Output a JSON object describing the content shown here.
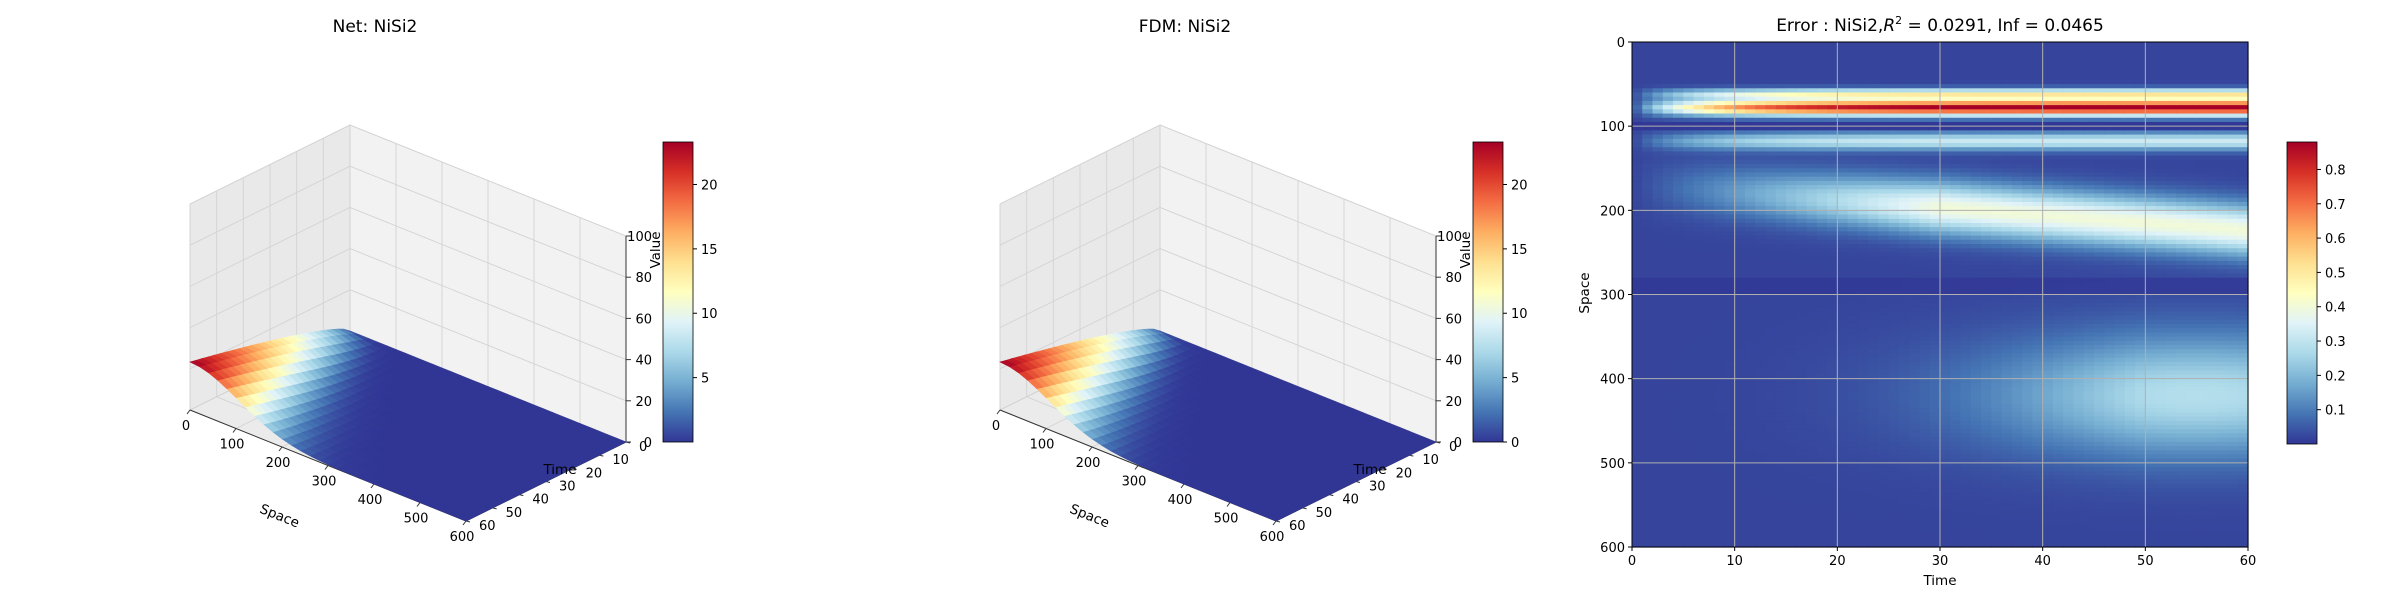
{
  "figure": {
    "background": "#ffffff"
  },
  "chart_data": [
    {
      "type": "surface3d",
      "title": "Net: NiSi2",
      "xlabel": "Space",
      "ylabel": "Time",
      "zlabel": "Value",
      "xlim": [
        0,
        600
      ],
      "ylim": [
        0,
        60
      ],
      "zlim": [
        0,
        100
      ],
      "xticks": [
        0,
        100,
        200,
        300,
        400,
        500,
        600
      ],
      "yticks": [
        0,
        10,
        20,
        30,
        40,
        50,
        60
      ],
      "zticks": [
        0,
        20,
        40,
        60,
        80,
        100
      ],
      "surface": {
        "peak_value": 23.3,
        "peak_space": 0,
        "peak_time": 60,
        "min_value": 0,
        "colormap": "RdYlBu_r"
      },
      "colorbar": {
        "ticks": [
          5,
          10,
          15,
          20
        ],
        "range": [
          0,
          23.3
        ]
      }
    },
    {
      "type": "surface3d",
      "title": "FDM: NiSi2",
      "xlabel": "Space",
      "ylabel": "Time",
      "zlabel": "Value",
      "xlim": [
        0,
        600
      ],
      "ylim": [
        0,
        60
      ],
      "zlim": [
        0,
        100
      ],
      "xticks": [
        0,
        100,
        200,
        300,
        400,
        500,
        600
      ],
      "yticks": [
        0,
        10,
        20,
        30,
        40,
        50,
        60
      ],
      "zticks": [
        0,
        20,
        40,
        60,
        80,
        100
      ],
      "surface": {
        "peak_value": 23.3,
        "peak_space": 0,
        "peak_time": 60,
        "min_value": 0,
        "colormap": "RdYlBu_r"
      },
      "colorbar": {
        "ticks": [
          0,
          5,
          10,
          15,
          20
        ],
        "range": [
          0,
          23.3
        ]
      }
    },
    {
      "type": "heatmap",
      "title_prefix": "Error : NiSi2,",
      "title_r": "R",
      "title_sup": "2",
      "title_suffix": " = 0.0291, Inf = 0.0465",
      "xlabel": "Time",
      "ylabel": "Space",
      "xlim": [
        0,
        60
      ],
      "ylim": [
        600,
        0
      ],
      "xticks": [
        0,
        10,
        20,
        30,
        40,
        50,
        60
      ],
      "yticks": [
        0,
        100,
        200,
        300,
        400,
        500,
        600
      ],
      "grid": true,
      "colormap": "RdYlBu_r",
      "colorbar": {
        "ticks": [
          0.1,
          0.2,
          0.3,
          0.4,
          0.5,
          0.6,
          0.7,
          0.8
        ],
        "range": [
          0,
          0.88
        ]
      },
      "features": [
        {
          "space": 78,
          "value": 0.88,
          "note": "intense band"
        },
        {
          "space": 100,
          "value": 0.02
        },
        {
          "space": 120,
          "value": 0.35
        },
        {
          "space": 215,
          "value": 0.38
        },
        {
          "space": 290,
          "value": 0.05
        },
        {
          "space": 440,
          "value": 0.25
        }
      ]
    }
  ]
}
